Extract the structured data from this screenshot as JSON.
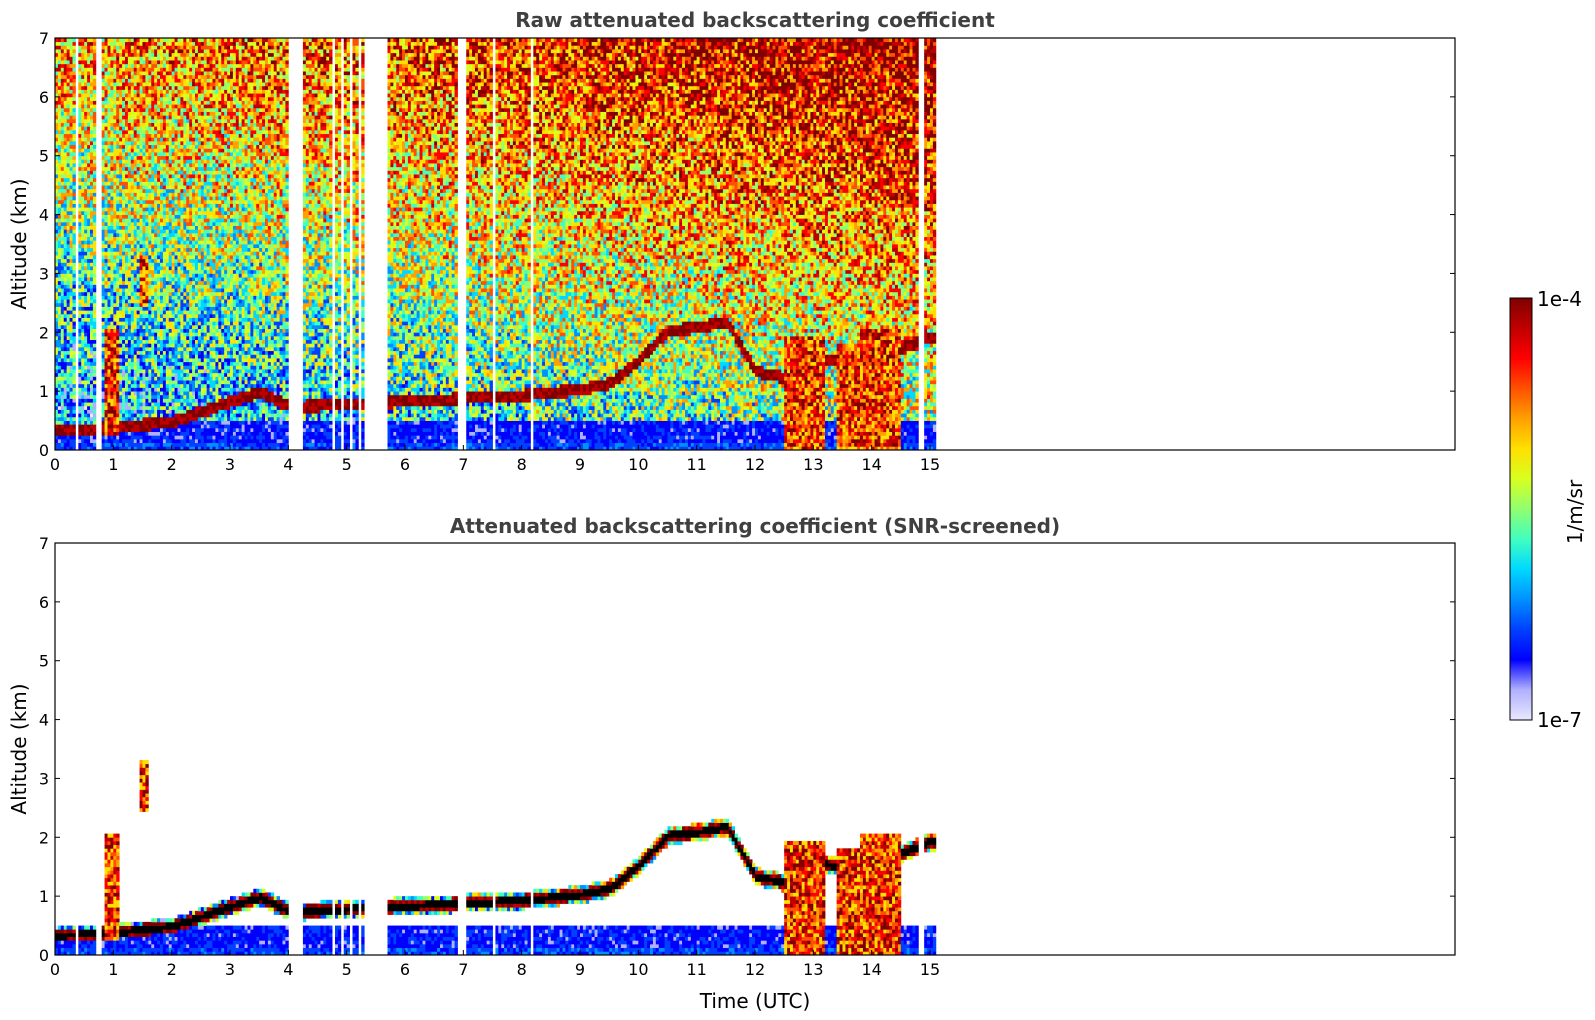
{
  "chart_data": [
    {
      "type": "heatmap",
      "title": "Raw attenuated backscattering coefficient",
      "xlabel": "",
      "ylabel": "Altitude (km)",
      "xlim": [
        0,
        24
      ],
      "ylim": [
        0,
        7
      ],
      "x_ticks": [
        0,
        1,
        2,
        3,
        4,
        5,
        6,
        7,
        8,
        9,
        10,
        11,
        12,
        13,
        14,
        15
      ],
      "y_ticks": [
        0,
        1,
        2,
        3,
        4,
        5,
        6,
        7
      ],
      "data_extent_x": [
        0,
        15.1
      ],
      "screened": false,
      "gaps": [
        [
          0.35,
          0.42
        ],
        [
          0.72,
          0.78
        ],
        [
          4.0,
          4.25
        ],
        [
          4.75,
          4.82
        ],
        [
          4.9,
          4.95
        ],
        [
          5.05,
          5.1
        ],
        [
          5.2,
          5.25
        ],
        [
          5.3,
          5.7
        ],
        [
          6.9,
          7.05
        ],
        [
          7.5,
          7.55
        ],
        [
          8.15,
          8.2
        ],
        [
          14.8,
          14.9
        ]
      ],
      "cloud_layer_km": [
        {
          "x": 0.0,
          "y": 0.3
        },
        {
          "x": 1.0,
          "y": 0.35
        },
        {
          "x": 2.0,
          "y": 0.45
        },
        {
          "x": 3.0,
          "y": 0.8
        },
        {
          "x": 3.5,
          "y": 0.95
        },
        {
          "x": 4.0,
          "y": 0.7
        },
        {
          "x": 5.0,
          "y": 0.75
        },
        {
          "x": 6.0,
          "y": 0.8
        },
        {
          "x": 7.0,
          "y": 0.85
        },
        {
          "x": 8.0,
          "y": 0.9
        },
        {
          "x": 9.0,
          "y": 1.0
        },
        {
          "x": 9.5,
          "y": 1.1
        },
        {
          "x": 10.0,
          "y": 1.5
        },
        {
          "x": 10.5,
          "y": 2.0
        },
        {
          "x": 11.0,
          "y": 2.05
        },
        {
          "x": 11.5,
          "y": 2.15
        },
        {
          "x": 12.0,
          "y": 1.3
        },
        {
          "x": 12.5,
          "y": 1.2
        },
        {
          "x": 13.0,
          "y": 1.55
        },
        {
          "x": 13.5,
          "y": 1.45
        },
        {
          "x": 14.0,
          "y": 1.6
        },
        {
          "x": 14.5,
          "y": 1.7
        },
        {
          "x": 15.0,
          "y": 1.9
        }
      ],
      "features": [
        {
          "x": [
            0.85,
            1.1
          ],
          "y": [
            0.2,
            2.0
          ],
          "level": "high"
        },
        {
          "x": [
            1.45,
            1.6
          ],
          "y": [
            2.4,
            3.3
          ],
          "level": "high"
        },
        {
          "x": [
            12.5,
            13.2
          ],
          "y": [
            0,
            1.9
          ],
          "level": "high"
        },
        {
          "x": [
            13.4,
            13.8
          ],
          "y": [
            0,
            1.8
          ],
          "level": "high"
        },
        {
          "x": [
            13.8,
            14.5
          ],
          "y": [
            0,
            2.0
          ],
          "level": "high"
        }
      ]
    },
    {
      "type": "heatmap",
      "title": "Attenuated backscattering coefficient (SNR-screened)",
      "xlabel": "Time (UTC)",
      "ylabel": "Altitude (km)",
      "xlim": [
        0,
        24
      ],
      "ylim": [
        0,
        7
      ],
      "x_ticks": [
        0,
        1,
        2,
        3,
        4,
        5,
        6,
        7,
        8,
        9,
        10,
        11,
        12,
        13,
        14,
        15
      ],
      "y_ticks": [
        0,
        1,
        2,
        3,
        4,
        5,
        6,
        7
      ],
      "data_extent_x": [
        0,
        15.1
      ],
      "screened": true,
      "gaps": [
        [
          0.35,
          0.42
        ],
        [
          0.72,
          0.78
        ],
        [
          4.0,
          4.25
        ],
        [
          4.75,
          4.82
        ],
        [
          4.9,
          4.95
        ],
        [
          5.05,
          5.1
        ],
        [
          5.2,
          5.25
        ],
        [
          5.3,
          5.7
        ],
        [
          6.9,
          7.05
        ],
        [
          7.5,
          7.55
        ],
        [
          8.15,
          8.2
        ],
        [
          14.8,
          14.9
        ]
      ],
      "cloud_layer_km": [
        {
          "x": 0.0,
          "y": 0.3
        },
        {
          "x": 1.0,
          "y": 0.35
        },
        {
          "x": 2.0,
          "y": 0.45
        },
        {
          "x": 3.0,
          "y": 0.8
        },
        {
          "x": 3.5,
          "y": 0.95
        },
        {
          "x": 4.0,
          "y": 0.7
        },
        {
          "x": 5.0,
          "y": 0.75
        },
        {
          "x": 6.0,
          "y": 0.8
        },
        {
          "x": 7.0,
          "y": 0.85
        },
        {
          "x": 8.0,
          "y": 0.9
        },
        {
          "x": 9.0,
          "y": 1.0
        },
        {
          "x": 9.5,
          "y": 1.1
        },
        {
          "x": 10.0,
          "y": 1.5
        },
        {
          "x": 10.5,
          "y": 2.0
        },
        {
          "x": 11.0,
          "y": 2.05
        },
        {
          "x": 11.5,
          "y": 2.15
        },
        {
          "x": 12.0,
          "y": 1.3
        },
        {
          "x": 12.5,
          "y": 1.2
        },
        {
          "x": 13.0,
          "y": 1.55
        },
        {
          "x": 13.5,
          "y": 1.45
        },
        {
          "x": 14.0,
          "y": 1.6
        },
        {
          "x": 14.5,
          "y": 1.7
        },
        {
          "x": 15.0,
          "y": 1.9
        }
      ],
      "features": [
        {
          "x": [
            0.85,
            1.1
          ],
          "y": [
            0.2,
            2.0
          ],
          "level": "high"
        },
        {
          "x": [
            1.45,
            1.6
          ],
          "y": [
            2.4,
            3.3
          ],
          "level": "high"
        },
        {
          "x": [
            12.5,
            13.2
          ],
          "y": [
            0,
            1.9
          ],
          "level": "high"
        },
        {
          "x": [
            13.4,
            13.8
          ],
          "y": [
            0,
            1.8
          ],
          "level": "high"
        },
        {
          "x": [
            13.8,
            14.5
          ],
          "y": [
            0,
            2.0
          ],
          "level": "high"
        }
      ]
    }
  ],
  "colorbar": {
    "max_label": "1e-4",
    "min_label": "1e-7",
    "unit_label": "1/m/sr",
    "scale": "log",
    "colormap": "jet",
    "colors": [
      "#e8e8ff",
      "#b0b0ff",
      "#0000ff",
      "#0040ff",
      "#0090ff",
      "#00d8ff",
      "#40ffc0",
      "#90ff70",
      "#d8ff20",
      "#ffe000",
      "#ffa000",
      "#ff5000",
      "#ff0000",
      "#c00000",
      "#800000"
    ]
  }
}
